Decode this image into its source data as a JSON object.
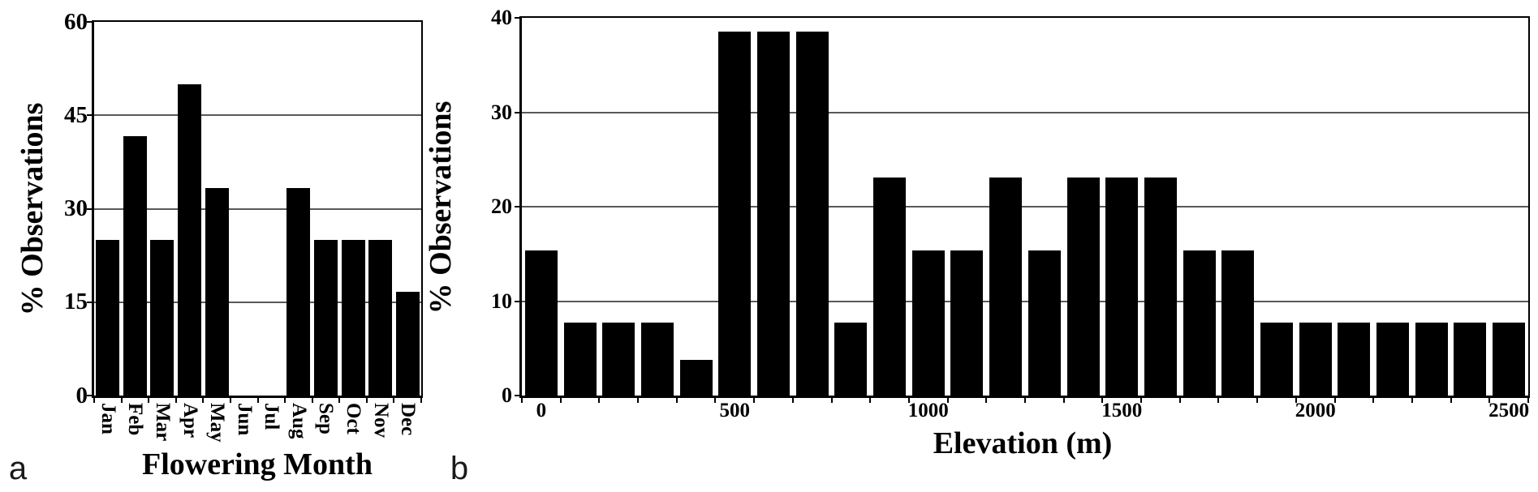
{
  "figure": {
    "background": "#ffffff",
    "bar_color": "#000000",
    "gridline_color": "#595959",
    "axis_color": "#000000",
    "text_color": "#000000"
  },
  "chart_data": [
    {
      "type": "bar",
      "panel_label": "a",
      "title": "",
      "xlabel": "Flowering Month",
      "ylabel": "% Observations",
      "ylim": [
        0,
        60
      ],
      "yticks": [
        0,
        15,
        30,
        45,
        60
      ],
      "grid": true,
      "legend": false,
      "x_label_every": 1,
      "rotate_x_labels": true,
      "categories": [
        "Jan",
        "Feb",
        "Mar",
        "Apr",
        "May",
        "Jun",
        "Jul",
        "Aug",
        "Sep",
        "Oct",
        "Nov",
        "Dec"
      ],
      "values": [
        25,
        41.7,
        25,
        50,
        33.3,
        0,
        0,
        33.3,
        25,
        25,
        25,
        16.7
      ]
    },
    {
      "type": "bar",
      "panel_label": "b",
      "title": "",
      "xlabel": "Elevation (m)",
      "ylabel": "% Observations",
      "ylim": [
        0,
        40
      ],
      "yticks": [
        0,
        10,
        20,
        30,
        40
      ],
      "grid": true,
      "legend": false,
      "x_label_every": 5,
      "rotate_x_labels": false,
      "categories": [
        "0",
        "100",
        "200",
        "300",
        "400",
        "500",
        "600",
        "700",
        "800",
        "900",
        "1000",
        "1100",
        "1200",
        "1300",
        "1400",
        "1500",
        "1600",
        "1700",
        "1800",
        "1900",
        "2000",
        "2100",
        "2200",
        "2300",
        "2400",
        "2500"
      ],
      "values": [
        15.4,
        7.7,
        7.7,
        7.7,
        3.8,
        38.5,
        38.5,
        38.5,
        7.7,
        23.1,
        15.4,
        15.4,
        23.1,
        15.4,
        23.1,
        23.1,
        23.1,
        15.4,
        15.4,
        7.7,
        7.7,
        7.7,
        7.7,
        7.7,
        7.7,
        7.7
      ]
    }
  ]
}
